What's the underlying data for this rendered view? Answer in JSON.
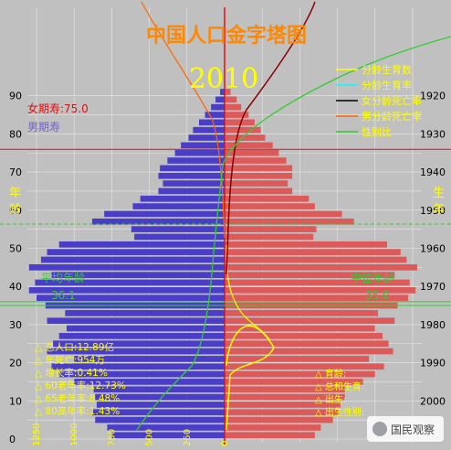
{
  "chart_data": {
    "type": "bar",
    "orientation": "horizontal-population-pyramid",
    "title": "中国人口金字塔图",
    "year": "2010",
    "age_axis": {
      "ticks": [
        0,
        10,
        20,
        30,
        40,
        50,
        60,
        70,
        80,
        90
      ],
      "range": [
        0,
        96
      ],
      "side_label": "年龄"
    },
    "birth_year_axis": {
      "ticks": [
        2000,
        1990,
        1980,
        1970,
        1960,
        1950,
        1940,
        1930,
        1920
      ],
      "side_label": "生年"
    },
    "population_axis": {
      "ticks": [
        1250,
        1000,
        750,
        500,
        250,
        0
      ],
      "range": [
        0,
        1250
      ],
      "unit": "万"
    },
    "male_ages": [
      0,
      2,
      4,
      6,
      8,
      10,
      12,
      14,
      16,
      18,
      20,
      22,
      24,
      26,
      28,
      30,
      32,
      34,
      36,
      38,
      40,
      42,
      44,
      46,
      48,
      50,
      52,
      54,
      56,
      58,
      60,
      62,
      64,
      66,
      68,
      70,
      72,
      74,
      76,
      78,
      80,
      82,
      84,
      86,
      88,
      90
    ],
    "male_values": [
      750,
      780,
      860,
      880,
      850,
      860,
      870,
      1000,
      1100,
      1150,
      1000,
      1180,
      1140,
      1100,
      1050,
      1180,
      1060,
      1190,
      1250,
      1300,
      1260,
      1150,
      1300,
      1220,
      1180,
      1100,
      600,
      620,
      880,
      800,
      610,
      560,
      440,
      410,
      440,
      430,
      380,
      330,
      290,
      240,
      210,
      170,
      130,
      90,
      60,
      30
    ],
    "female_ages": [
      0,
      2,
      4,
      6,
      8,
      10,
      12,
      14,
      16,
      18,
      20,
      22,
      24,
      26,
      28,
      30,
      32,
      34,
      36,
      38,
      40,
      42,
      44,
      46,
      48,
      50,
      52,
      54,
      56,
      58,
      60,
      62,
      64,
      66,
      68,
      70,
      72,
      74,
      76,
      78,
      80,
      82,
      84,
      86,
      88,
      90
    ],
    "female_values": [
      600,
      640,
      720,
      760,
      770,
      800,
      800,
      920,
      1000,
      1060,
      960,
      1120,
      1090,
      1050,
      1000,
      1130,
      1020,
      1150,
      1220,
      1270,
      1230,
      1130,
      1280,
      1210,
      1170,
      1080,
      590,
      610,
      860,
      780,
      600,
      560,
      450,
      420,
      450,
      450,
      410,
      360,
      320,
      270,
      240,
      200,
      160,
      110,
      80,
      40
    ],
    "legend": [
      {
        "name": "分龄生育数",
        "color": "#ffff00"
      },
      {
        "name": "分龄生育率",
        "color": "#00ffff"
      },
      {
        "name": "女分龄死亡率",
        "color": "#000000"
      },
      {
        "name": "男分龄死亡率",
        "color": "#ff6600"
      },
      {
        "name": "性别比",
        "color": "#33cc33"
      }
    ],
    "colors": {
      "male": "#4a3ec8",
      "female": "#dd5a5a",
      "background": "#c0c0c0",
      "grid": "#e6e6e6",
      "accent_red": "#dd1111",
      "guide_green": "#33cc33"
    },
    "life_expectancy_female": {
      "label": "女期寿:75.0",
      "age": 75
    },
    "life_expectancy_male_label": "男期寿",
    "mean_age": {
      "label": "平均年龄",
      "value": "36.1",
      "age": 36
    },
    "median_age": {
      "label": "中位年龄",
      "value": "35.0",
      "age": 35
    },
    "stats": [
      "总人口:12.89亿",
      "年死亡:954万",
      "增长率:0.41%",
      "60老年率:12.73%",
      "65老年率:8.48%",
      "80高年率:1.43%"
    ],
    "stats_right": [
      "育龄:",
      "总和生育:",
      "出生:",
      "出生性别:"
    ],
    "watermark": "国民观察"
  }
}
